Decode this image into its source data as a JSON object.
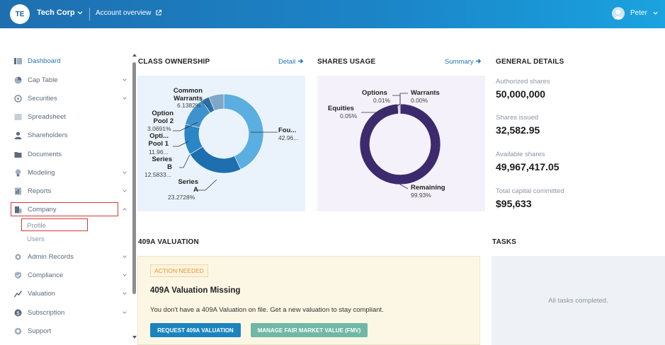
{
  "header": {
    "company_initials": "TE",
    "company_name": "Tech Corp",
    "account_overview": "Account overview",
    "user_name": "Peter"
  },
  "sidebar": {
    "items": [
      {
        "label": "Dashboard",
        "icon": "dashboard-icon",
        "active": true,
        "chevron": false
      },
      {
        "label": "Cap Table",
        "icon": "pie-chart-icon",
        "chevron": "down"
      },
      {
        "label": "Securities",
        "icon": "securities-icon",
        "chevron": "down"
      },
      {
        "label": "Spreadsheet",
        "icon": "spreadsheet-icon",
        "chevron": false
      },
      {
        "label": "Shareholders",
        "icon": "person-icon",
        "chevron": false
      },
      {
        "label": "Documents",
        "icon": "folder-icon",
        "chevron": false
      },
      {
        "label": "Modeling",
        "icon": "bulb-icon",
        "chevron": "down"
      },
      {
        "label": "Reports",
        "icon": "report-icon",
        "chevron": "down"
      },
      {
        "label": "Company",
        "icon": "building-icon",
        "chevron": "up"
      },
      {
        "label": "Admin Records",
        "icon": "gear-icon",
        "chevron": "down"
      },
      {
        "label": "Compliance",
        "icon": "check-shield-icon",
        "chevron": "down"
      },
      {
        "label": "Valuation",
        "icon": "chart-icon",
        "chevron": "down"
      },
      {
        "label": "Subscription",
        "icon": "dollar-icon",
        "chevron": "down"
      },
      {
        "label": "Support",
        "icon": "support-icon",
        "chevron": false
      }
    ],
    "company_sub": [
      "Profile",
      "Users"
    ]
  },
  "class_ownership": {
    "title": "CLASS OWNERSHIP",
    "link": "Detail",
    "slices": [
      {
        "name": "Fou...",
        "value_label": "42.96...",
        "value": 42.96,
        "color": "#5aaee0"
      },
      {
        "name": "Series A",
        "value_label": "23.2728%",
        "value": 23.2728,
        "color": "#1d6fb0"
      },
      {
        "name": "Series B",
        "value_label": "12.5833...",
        "value": 12.5833,
        "color": "#2a86c6"
      },
      {
        "name": "Opti... Pool 1",
        "value_label": "11.96...",
        "value": 11.96,
        "color": "#3e93cf"
      },
      {
        "name": "Option Pool 2",
        "value_label": "3.0691%",
        "value": 3.0691,
        "color": "#2a6fa5"
      },
      {
        "name": "Common Warrants",
        "value_label": "6.1382%",
        "value": 6.1382,
        "color": "#7fa7c8"
      }
    ]
  },
  "shares_usage": {
    "title": "SHARES USAGE",
    "link": "Summary",
    "slices": [
      {
        "name": "Remaining",
        "value_label": "99.93%",
        "value": 99.93,
        "color": "#3d2a6e"
      },
      {
        "name": "Equities",
        "value_label": "0.05%",
        "value": 0.05,
        "color": "#5b4a8c"
      },
      {
        "name": "Options",
        "value_label": "0.01%",
        "value": 0.01,
        "color": "#6b5a9c"
      },
      {
        "name": "Warrants",
        "value_label": "0.00%",
        "value": 0.0,
        "color": "#7b6aac"
      }
    ]
  },
  "general_details": {
    "title": "GENERAL DETAILS",
    "authorized_label": "Authorized shares",
    "authorized_value": "50,000,000",
    "issued_label": "Shares issued",
    "issued_value": "32,582.95",
    "available_label": "Available shares",
    "available_value": "49,967,417.05",
    "capital_label": "Total capital committed",
    "capital_value": "$95,633"
  },
  "valuation": {
    "title": "409A VALUATION",
    "badge": "ACTION NEEDED",
    "heading": "409A Valuation Missing",
    "text": "You don't have a 409A Valuation on file. Get a new valuation to stay compliant.",
    "btn_request": "REQUEST 409A VALUATION",
    "btn_fmv": "MANAGE FAIR MARKET VALUE (FMV)"
  },
  "tasks": {
    "title": "TASKS",
    "empty_text": "All tasks completed."
  }
}
